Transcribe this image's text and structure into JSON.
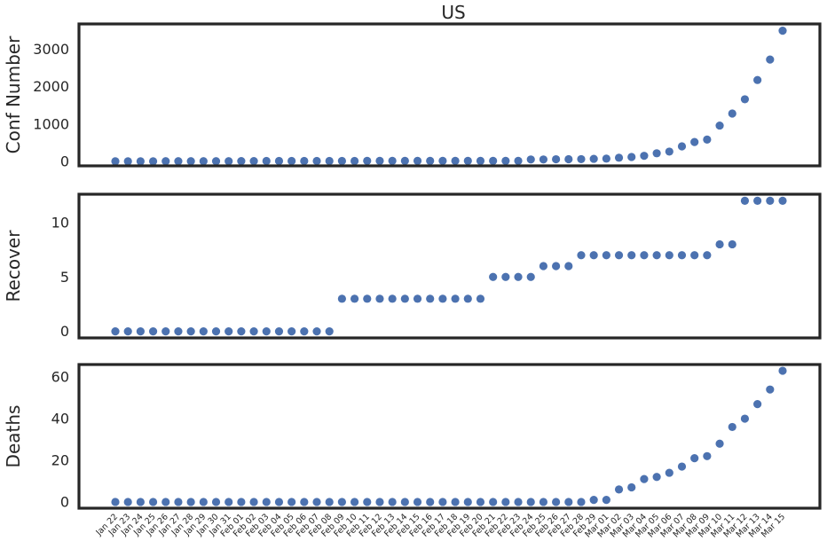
{
  "chart_data": {
    "type": "scatter",
    "title": "US",
    "color": "#4c72b0",
    "grid": false,
    "x": [
      "Jan 22",
      "Jan 23",
      "Jan 24",
      "Jan 25",
      "Jan 26",
      "Jan 27",
      "Jan 28",
      "Jan 29",
      "Jan 30",
      "Jan 31",
      "Feb 01",
      "Feb 02",
      "Feb 03",
      "Feb 04",
      "Feb 05",
      "Feb 06",
      "Feb 07",
      "Feb 08",
      "Feb 09",
      "Feb 10",
      "Feb 11",
      "Feb 12",
      "Feb 13",
      "Feb 14",
      "Feb 15",
      "Feb 16",
      "Feb 17",
      "Feb 18",
      "Feb 19",
      "Feb 20",
      "Feb 21",
      "Feb 22",
      "Feb 23",
      "Feb 24",
      "Feb 25",
      "Feb 26",
      "Feb 27",
      "Feb 28",
      "Feb 29",
      "Mar 01",
      "Mar 02",
      "Mar 03",
      "Mar 04",
      "Mar 05",
      "Mar 06",
      "Mar 07",
      "Mar 08",
      "Mar 09",
      "Mar 10",
      "Mar 11",
      "Mar 12",
      "Mar 13",
      "Mar 14",
      "Mar 15"
    ],
    "panels": [
      {
        "ylabel": "Conf Number",
        "ylim": [
          -120,
          3680
        ],
        "yticks": [
          0,
          1000,
          2000,
          3000
        ],
        "values": [
          1,
          1,
          2,
          2,
          5,
          5,
          5,
          5,
          5,
          6,
          8,
          8,
          11,
          11,
          11,
          12,
          12,
          12,
          12,
          12,
          13,
          13,
          14,
          14,
          14,
          14,
          14,
          14,
          14,
          14,
          15,
          15,
          15,
          51,
          51,
          57,
          58,
          60,
          68,
          74,
          98,
          118,
          149,
          217,
          262,
          402,
          518,
          583,
          959,
          1281,
          1663,
          2179,
          2727,
          3499
        ]
      },
      {
        "ylabel": "Recover",
        "ylim": [
          -0.6,
          12.6
        ],
        "yticks": [
          0,
          5,
          10
        ],
        "values": [
          0,
          0,
          0,
          0,
          0,
          0,
          0,
          0,
          0,
          0,
          0,
          0,
          0,
          0,
          0,
          0,
          0,
          0,
          3,
          3,
          3,
          3,
          3,
          3,
          3,
          3,
          3,
          3,
          3,
          3,
          5,
          5,
          5,
          5,
          6,
          6,
          6,
          7,
          7,
          7,
          7,
          7,
          7,
          7,
          7,
          7,
          7,
          7,
          8,
          8,
          12,
          12,
          12,
          12
        ]
      },
      {
        "ylabel": "Deaths",
        "ylim": [
          -3,
          66
        ],
        "yticks": [
          0,
          20,
          40,
          60
        ],
        "values": [
          0,
          0,
          0,
          0,
          0,
          0,
          0,
          0,
          0,
          0,
          0,
          0,
          0,
          0,
          0,
          0,
          0,
          0,
          0,
          0,
          0,
          0,
          0,
          0,
          0,
          0,
          0,
          0,
          0,
          0,
          0,
          0,
          0,
          0,
          0,
          0,
          0,
          0,
          1,
          1,
          6,
          7,
          11,
          12,
          14,
          17,
          21,
          22,
          28,
          36,
          40,
          47,
          54,
          63
        ]
      }
    ]
  }
}
